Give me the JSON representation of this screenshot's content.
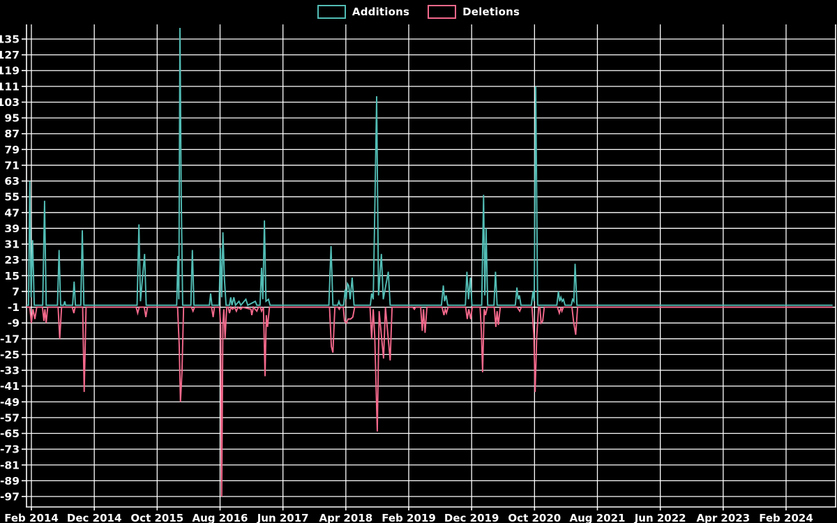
{
  "legend": {
    "items": [
      {
        "label": "Additions",
        "color": "#52bdb5"
      },
      {
        "label": "Deletions",
        "color": "#f4698c"
      }
    ]
  },
  "chart_data": {
    "type": "line",
    "title": "",
    "xlabel": "",
    "ylabel": "",
    "background": "#000000",
    "grid": true,
    "grid_color": "#ffffff",
    "text_color": "#ffffff",
    "legend_position": "top-center",
    "x_axis": {
      "unit": "months since Feb 2014",
      "range_months": [
        -0.78,
        127.4
      ],
      "ticks": [
        {
          "month_index": 0,
          "label": "Feb 2014"
        },
        {
          "month_index": 10,
          "label": "Dec 2014"
        },
        {
          "month_index": 20,
          "label": "Oct 2015"
        },
        {
          "month_index": 30,
          "label": "Aug 2016"
        },
        {
          "month_index": 40,
          "label": "Jun 2017"
        },
        {
          "month_index": 50,
          "label": "Apr 2018"
        },
        {
          "month_index": 60,
          "label": "Feb 2019"
        },
        {
          "month_index": 70,
          "label": "Dec 2019"
        },
        {
          "month_index": 80,
          "label": "Oct 2020"
        },
        {
          "month_index": 90,
          "label": "Aug 2021"
        },
        {
          "month_index": 100,
          "label": "Jun 2022"
        },
        {
          "month_index": 110,
          "label": "Apr 2023"
        },
        {
          "month_index": 120,
          "label": "Feb 2024"
        }
      ]
    },
    "y_axis": {
      "range": [
        -102,
        141
      ],
      "ticks": [
        135,
        127,
        119,
        111,
        103,
        95,
        87,
        79,
        71,
        63,
        55,
        47,
        39,
        31,
        23,
        15,
        7,
        -1,
        -9,
        -17,
        -25,
        -33,
        -41,
        -49,
        -57,
        -65,
        -73,
        -81,
        -89,
        -97
      ]
    },
    "series": [
      {
        "name": "Additions",
        "color": "#52bdb5",
        "baseline": 0,
        "points": [
          [
            -0.78,
            0
          ],
          [
            -0.45,
            0
          ],
          [
            -0.25,
            63
          ],
          [
            -0.05,
            4
          ],
          [
            0.2,
            33
          ],
          [
            0.45,
            0
          ],
          [
            1.8,
            0
          ],
          [
            2.1,
            53
          ],
          [
            2.35,
            0
          ],
          [
            4.15,
            0
          ],
          [
            4.4,
            28
          ],
          [
            4.65,
            0
          ],
          [
            5.15,
            0
          ],
          [
            5.3,
            2
          ],
          [
            5.45,
            0
          ],
          [
            6.55,
            0
          ],
          [
            6.8,
            12
          ],
          [
            7.0,
            0
          ],
          [
            7.85,
            0
          ],
          [
            8.1,
            38
          ],
          [
            8.35,
            0
          ],
          [
            16.8,
            0
          ],
          [
            17.1,
            41
          ],
          [
            17.35,
            2
          ],
          [
            18.0,
            26
          ],
          [
            18.25,
            0
          ],
          [
            23.1,
            0
          ],
          [
            23.3,
            25
          ],
          [
            23.45,
            3
          ],
          [
            23.62,
            142
          ],
          [
            23.82,
            56
          ],
          [
            24.05,
            0
          ],
          [
            25.35,
            0
          ],
          [
            25.6,
            28
          ],
          [
            25.85,
            0
          ],
          [
            28.3,
            0
          ],
          [
            28.5,
            6
          ],
          [
            28.7,
            0
          ],
          [
            29.85,
            0
          ],
          [
            30.05,
            29
          ],
          [
            30.25,
            4
          ],
          [
            30.45,
            37
          ],
          [
            30.7,
            13
          ],
          [
            30.95,
            0
          ],
          [
            31.5,
            0
          ],
          [
            31.7,
            4
          ],
          [
            31.9,
            0
          ],
          [
            32.2,
            4
          ],
          [
            32.45,
            0
          ],
          [
            33.0,
            2
          ],
          [
            33.3,
            0
          ],
          [
            34.1,
            3
          ],
          [
            34.4,
            0
          ],
          [
            35.6,
            2
          ],
          [
            35.85,
            0
          ],
          [
            36.35,
            0
          ],
          [
            36.6,
            19
          ],
          [
            36.8,
            3
          ],
          [
            37.05,
            43
          ],
          [
            37.3,
            2
          ],
          [
            37.7,
            3
          ],
          [
            37.95,
            0
          ],
          [
            47.3,
            0
          ],
          [
            47.65,
            30
          ],
          [
            47.95,
            0
          ],
          [
            48.7,
            0
          ],
          [
            48.9,
            2
          ],
          [
            49.1,
            0
          ],
          [
            49.65,
            0
          ],
          [
            49.9,
            8
          ],
          [
            50.05,
            3
          ],
          [
            50.25,
            11
          ],
          [
            50.45,
            10
          ],
          [
            50.7,
            3
          ],
          [
            51.0,
            14
          ],
          [
            51.3,
            0
          ],
          [
            53.9,
            0
          ],
          [
            54.1,
            6
          ],
          [
            54.35,
            3
          ],
          [
            54.6,
            47
          ],
          [
            54.9,
            106
          ],
          [
            55.2,
            5
          ],
          [
            55.65,
            26
          ],
          [
            55.95,
            3
          ],
          [
            56.75,
            17
          ],
          [
            57.05,
            0
          ],
          [
            65.2,
            0
          ],
          [
            65.5,
            10
          ],
          [
            65.7,
            2
          ],
          [
            65.95,
            5
          ],
          [
            66.2,
            0
          ],
          [
            69.0,
            0
          ],
          [
            69.25,
            17
          ],
          [
            69.5,
            3
          ],
          [
            69.8,
            14
          ],
          [
            70.05,
            0
          ],
          [
            71.6,
            0
          ],
          [
            71.9,
            56
          ],
          [
            72.1,
            5
          ],
          [
            72.3,
            39
          ],
          [
            72.55,
            0
          ],
          [
            73.55,
            0
          ],
          [
            73.8,
            17
          ],
          [
            74.05,
            0
          ],
          [
            76.95,
            0
          ],
          [
            77.2,
            9
          ],
          [
            77.4,
            3
          ],
          [
            77.6,
            5
          ],
          [
            77.85,
            0
          ],
          [
            79.5,
            0
          ],
          [
            79.75,
            7
          ],
          [
            79.95,
            2
          ],
          [
            80.2,
            111
          ],
          [
            80.5,
            0
          ],
          [
            83.55,
            0
          ],
          [
            83.8,
            7
          ],
          [
            84.0,
            2
          ],
          [
            84.2,
            4
          ],
          [
            84.4,
            2
          ],
          [
            84.6,
            3
          ],
          [
            84.85,
            0
          ],
          [
            85.85,
            0
          ],
          [
            86.05,
            3
          ],
          [
            86.25,
            2
          ],
          [
            86.45,
            21
          ],
          [
            86.75,
            0
          ],
          [
            127.4,
            0
          ]
        ]
      },
      {
        "name": "Deletions",
        "color": "#f4698c",
        "baseline": -1,
        "points": [
          [
            -0.78,
            -1
          ],
          [
            -0.25,
            -1
          ],
          [
            0.0,
            -9
          ],
          [
            0.25,
            -2
          ],
          [
            0.55,
            -7
          ],
          [
            0.85,
            -1
          ],
          [
            1.75,
            -1
          ],
          [
            2.0,
            -8
          ],
          [
            2.15,
            -2
          ],
          [
            2.35,
            -9
          ],
          [
            2.6,
            -1
          ],
          [
            4.25,
            -1
          ],
          [
            4.5,
            -17
          ],
          [
            4.8,
            -1
          ],
          [
            6.5,
            -1
          ],
          [
            6.75,
            -4
          ],
          [
            6.95,
            -1
          ],
          [
            8.15,
            -1
          ],
          [
            8.4,
            -44
          ],
          [
            8.7,
            -1
          ],
          [
            16.65,
            -1
          ],
          [
            16.9,
            -4
          ],
          [
            17.15,
            -1
          ],
          [
            17.95,
            -1
          ],
          [
            18.2,
            -6
          ],
          [
            18.45,
            -1
          ],
          [
            23.25,
            -1
          ],
          [
            23.5,
            -20
          ],
          [
            23.7,
            -49
          ],
          [
            23.95,
            -34
          ],
          [
            24.2,
            -1
          ],
          [
            25.45,
            -1
          ],
          [
            25.7,
            -3
          ],
          [
            25.95,
            -1
          ],
          [
            28.65,
            -1
          ],
          [
            28.9,
            -6
          ],
          [
            29.1,
            -1
          ],
          [
            29.9,
            -1
          ],
          [
            30.1,
            -10
          ],
          [
            30.25,
            -97
          ],
          [
            30.45,
            -9
          ],
          [
            30.6,
            -2
          ],
          [
            30.8,
            -17
          ],
          [
            31.05,
            -1
          ],
          [
            31.3,
            -1
          ],
          [
            31.5,
            -4
          ],
          [
            31.75,
            -1
          ],
          [
            32.0,
            -2
          ],
          [
            32.3,
            -1
          ],
          [
            32.6,
            -3
          ],
          [
            32.85,
            -1
          ],
          [
            33.3,
            -2
          ],
          [
            33.55,
            -1
          ],
          [
            34.9,
            -2
          ],
          [
            35.05,
            -5
          ],
          [
            35.3,
            -1
          ],
          [
            35.85,
            -3
          ],
          [
            36.1,
            -1
          ],
          [
            36.4,
            -1
          ],
          [
            36.6,
            -3
          ],
          [
            36.9,
            -1
          ],
          [
            37.15,
            -36
          ],
          [
            37.35,
            -5
          ],
          [
            37.55,
            -11
          ],
          [
            37.85,
            -1
          ],
          [
            47.4,
            -1
          ],
          [
            47.7,
            -21
          ],
          [
            47.95,
            -24
          ],
          [
            48.25,
            -1
          ],
          [
            48.75,
            -1
          ],
          [
            48.95,
            -2
          ],
          [
            49.15,
            -1
          ],
          [
            49.6,
            -1
          ],
          [
            49.8,
            -8
          ],
          [
            50.1,
            -9
          ],
          [
            50.35,
            -7
          ],
          [
            50.75,
            -7
          ],
          [
            51.1,
            -6
          ],
          [
            51.4,
            -1
          ],
          [
            53.85,
            -1
          ],
          [
            54.1,
            -17
          ],
          [
            54.35,
            -2
          ],
          [
            54.6,
            -16
          ],
          [
            55.0,
            -64
          ],
          [
            55.3,
            -3
          ],
          [
            55.5,
            -10
          ],
          [
            56.0,
            -27
          ],
          [
            56.3,
            -1
          ],
          [
            57.05,
            -28
          ],
          [
            57.35,
            -1
          ],
          [
            60.65,
            -1
          ],
          [
            60.9,
            -2
          ],
          [
            61.1,
            -1
          ],
          [
            61.9,
            -1
          ],
          [
            62.15,
            -13
          ],
          [
            62.35,
            -2
          ],
          [
            62.6,
            -14
          ],
          [
            62.9,
            -1
          ],
          [
            65.3,
            -1
          ],
          [
            65.6,
            -5
          ],
          [
            65.8,
            -2
          ],
          [
            66.0,
            -4
          ],
          [
            66.25,
            -1
          ],
          [
            69.05,
            -1
          ],
          [
            69.3,
            -7
          ],
          [
            69.55,
            -2
          ],
          [
            69.85,
            -7
          ],
          [
            70.1,
            -1
          ],
          [
            71.35,
            -1
          ],
          [
            71.55,
            -13
          ],
          [
            71.75,
            -34
          ],
          [
            72.0,
            -2
          ],
          [
            72.2,
            -5
          ],
          [
            72.5,
            -1
          ],
          [
            73.6,
            -1
          ],
          [
            73.85,
            -11
          ],
          [
            74.05,
            -3
          ],
          [
            74.25,
            -10
          ],
          [
            74.55,
            -1
          ],
          [
            77.25,
            -1
          ],
          [
            77.45,
            -2
          ],
          [
            77.65,
            -3
          ],
          [
            77.9,
            -1
          ],
          [
            79.6,
            -1
          ],
          [
            79.9,
            -15
          ],
          [
            80.1,
            -44
          ],
          [
            80.35,
            -16
          ],
          [
            80.65,
            -1
          ],
          [
            80.85,
            -1
          ],
          [
            81.05,
            -9
          ],
          [
            81.3,
            -8
          ],
          [
            81.55,
            -1
          ],
          [
            83.65,
            -1
          ],
          [
            83.95,
            -4
          ],
          [
            84.2,
            -1
          ],
          [
            84.35,
            -3
          ],
          [
            84.6,
            -1
          ],
          [
            85.95,
            -1
          ],
          [
            86.2,
            -8
          ],
          [
            86.55,
            -15
          ],
          [
            86.85,
            -1
          ],
          [
            127.4,
            -1
          ]
        ]
      }
    ]
  }
}
